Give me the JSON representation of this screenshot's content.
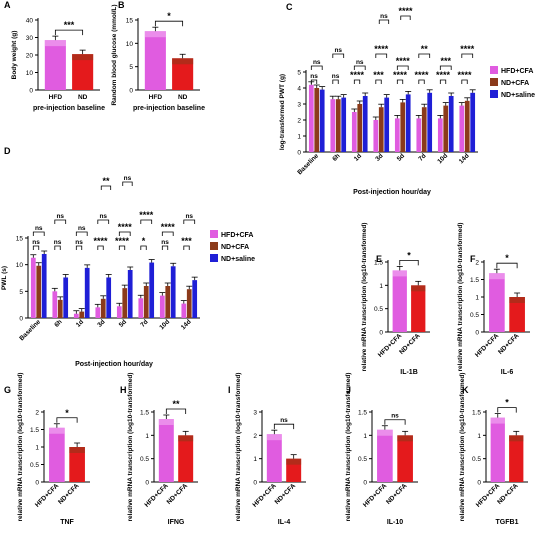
{
  "colors": {
    "hfd": "#e05ce0",
    "nd": "#8b3a1a",
    "saline": "#1f1fd6",
    "red": "#e41a1c"
  },
  "chart_data": [
    {
      "letter": "A",
      "type": "bar",
      "categories": [
        "HFD",
        "ND"
      ],
      "values": [
        28.5,
        20.5
      ],
      "ylabel": "Body weight (g)",
      "ylim": [
        0,
        40
      ],
      "yticks": [
        0,
        10,
        20,
        30,
        40
      ],
      "xlabel": "pre-injection baseline",
      "sig": [
        {
          "a": 0,
          "b": 1,
          "text": "***"
        }
      ]
    },
    {
      "letter": "B",
      "type": "bar",
      "categories": [
        "HFD",
        "ND"
      ],
      "values": [
        12.6,
        6.8
      ],
      "ylabel": "Random blood glucose (mmol/L)",
      "ylim": [
        0,
        15
      ],
      "yticks": [
        0,
        5,
        10,
        15
      ],
      "xlabel": "pre-injection baseline",
      "sig": [
        {
          "a": 0,
          "b": 1,
          "text": "*"
        }
      ]
    },
    {
      "letter": "C",
      "type": "bar",
      "ylabel": "log-transformed PWT (g)",
      "xlabel": "Post-injection hour/day",
      "ylim": [
        0,
        5
      ],
      "yticks": [
        0,
        1,
        2,
        3,
        4,
        5
      ],
      "categories": [
        "Baseline",
        "6h",
        "1d",
        "3d",
        "5d",
        "7d",
        "10d",
        "14d"
      ],
      "series": [
        {
          "name": "HFD+CFA",
          "values": [
            4.2,
            3.3,
            2.5,
            2.0,
            2.1,
            2.1,
            2.1,
            2.9
          ]
        },
        {
          "name": "ND+CFA",
          "values": [
            4.0,
            3.3,
            3.0,
            2.8,
            3.1,
            2.8,
            2.9,
            3.2
          ]
        },
        {
          "name": "ND+saline",
          "values": [
            3.9,
            3.4,
            3.5,
            3.4,
            3.6,
            3.7,
            3.5,
            3.7
          ]
        }
      ],
      "sig_labels": [
        "ns",
        "ns",
        "ns",
        "ns",
        "****",
        "ns",
        "***",
        "****",
        "****",
        "****",
        "****",
        "**",
        "****",
        "***",
        "****",
        "****",
        "ns",
        "****"
      ]
    },
    {
      "letter": "D",
      "type": "bar",
      "ylabel": "PWL (s)",
      "xlabel": "Post-injection hour/day",
      "ylim": [
        0,
        15
      ],
      "yticks": [
        0,
        5,
        10,
        15
      ],
      "categories": [
        "Baseline",
        "6h",
        "1d",
        "3d",
        "5d",
        "7d",
        "10d",
        "14d"
      ],
      "series": [
        {
          "name": "HFD+CFA",
          "values": [
            11.3,
            5.0,
            0.8,
            2.0,
            2.2,
            3.7,
            4.2,
            2.7
          ]
        },
        {
          "name": "ND+CFA",
          "values": [
            9.8,
            3.4,
            1.2,
            3.6,
            5.6,
            6.0,
            6.0,
            5.4
          ]
        },
        {
          "name": "ND+saline",
          "values": [
            12.0,
            7.6,
            9.4,
            7.6,
            9.0,
            10.4,
            9.7,
            7.1
          ]
        }
      ],
      "sig_labels": [
        "ns",
        "ns",
        "ns",
        "ns",
        "ns",
        "ns",
        "****",
        "ns",
        "****",
        "****",
        "*",
        "****",
        "ns",
        "****",
        "***",
        "ns",
        "**",
        "ns"
      ]
    },
    {
      "letter": "E",
      "type": "bar",
      "categories": [
        "HFD+CFA",
        "ND+CFA"
      ],
      "values": [
        1.32,
        1.0
      ],
      "ylabel": "relative mRNA transcription (log10-transformed)",
      "ylim": [
        0,
        1.5
      ],
      "yticks": [
        0,
        0.5,
        1.0,
        1.5
      ],
      "xlabel": "IL-1B",
      "sig": [
        {
          "a": 0,
          "b": 1,
          "text": "*"
        }
      ]
    },
    {
      "letter": "F",
      "type": "bar",
      "categories": [
        "HFD+CFA",
        "ND+CFA"
      ],
      "values": [
        1.68,
        1.0
      ],
      "ylabel": "relative mRNA transcription (log10-transformed)",
      "ylim": [
        0,
        2.0
      ],
      "yticks": [
        0,
        0.5,
        1.0,
        1.5,
        2.0
      ],
      "xlabel": "IL-6",
      "sig": [
        {
          "a": 0,
          "b": 1,
          "text": "*"
        }
      ]
    },
    {
      "letter": "G",
      "type": "bar",
      "categories": [
        "HFD+CFA",
        "ND+CFA"
      ],
      "values": [
        1.55,
        1.0
      ],
      "ylabel": "relative mRNA transcription (log10-transformed)",
      "ylim": [
        0,
        2.0
      ],
      "yticks": [
        0,
        0.5,
        1.0,
        1.5,
        2.0
      ],
      "xlabel": "TNF",
      "sig": [
        {
          "a": 0,
          "b": 1,
          "text": "*"
        }
      ]
    },
    {
      "letter": "H",
      "type": "bar",
      "categories": [
        "HFD+CFA",
        "ND+CFA"
      ],
      "values": [
        1.35,
        1.0
      ],
      "ylabel": "relative mRNA transcription (log10-transformed)",
      "ylim": [
        0,
        1.5
      ],
      "yticks": [
        0,
        0.5,
        1.0,
        1.5
      ],
      "xlabel": "IFNG",
      "sig": [
        {
          "a": 0,
          "b": 1,
          "text": "**"
        }
      ]
    },
    {
      "letter": "I",
      "type": "bar",
      "categories": [
        "HFD+CFA",
        "ND+CFA"
      ],
      "values": [
        2.05,
        1.0
      ],
      "ylabel": "relative mRNA transcription (log10-transformed)",
      "ylim": [
        0,
        3
      ],
      "yticks": [
        0,
        1,
        2,
        3
      ],
      "xlabel": "IL-4",
      "sig": [
        {
          "a": 0,
          "b": 1,
          "text": "ns"
        }
      ]
    },
    {
      "letter": "J",
      "type": "bar",
      "categories": [
        "HFD+CFA",
        "ND+CFA"
      ],
      "values": [
        1.12,
        1.0
      ],
      "ylabel": "relative mRNA transcription (log10-transformed)",
      "ylim": [
        0,
        1.5
      ],
      "yticks": [
        0,
        0.5,
        1.0,
        1.5
      ],
      "xlabel": "IL-10",
      "sig": [
        {
          "a": 0,
          "b": 1,
          "text": "ns"
        }
      ]
    },
    {
      "letter": "K",
      "type": "bar",
      "categories": [
        "HFD+CFA",
        "ND+CFA"
      ],
      "values": [
        1.38,
        1.0
      ],
      "ylabel": "relative mRNA transcription (log10-transformed)",
      "ylim": [
        0,
        1.5
      ],
      "yticks": [
        0,
        0.5,
        1.0,
        1.5
      ],
      "xlabel": "TGFB1",
      "sig": [
        {
          "a": 0,
          "b": 1,
          "text": "*"
        }
      ]
    }
  ]
}
